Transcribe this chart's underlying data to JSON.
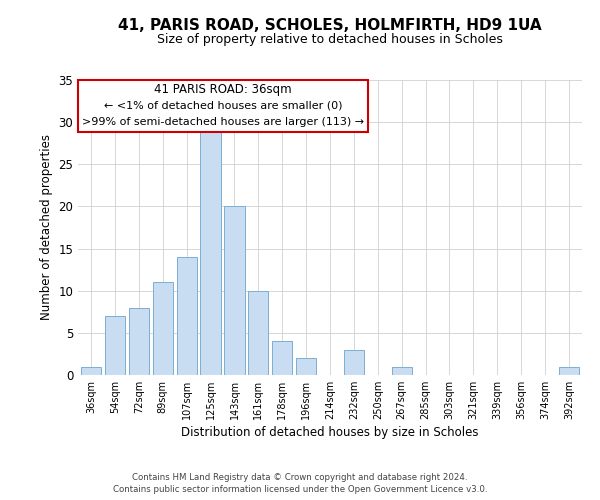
{
  "title": "41, PARIS ROAD, SCHOLES, HOLMFIRTH, HD9 1UA",
  "subtitle": "Size of property relative to detached houses in Scholes",
  "xlabel": "Distribution of detached houses by size in Scholes",
  "ylabel": "Number of detached properties",
  "bar_color": "#c8ddf2",
  "bar_edge_color": "#7bafd4",
  "categories": [
    "36sqm",
    "54sqm",
    "72sqm",
    "89sqm",
    "107sqm",
    "125sqm",
    "143sqm",
    "161sqm",
    "178sqm",
    "196sqm",
    "214sqm",
    "232sqm",
    "250sqm",
    "267sqm",
    "285sqm",
    "303sqm",
    "321sqm",
    "339sqm",
    "356sqm",
    "374sqm",
    "392sqm"
  ],
  "values": [
    1,
    7,
    8,
    11,
    14,
    29,
    20,
    10,
    4,
    2,
    0,
    3,
    0,
    1,
    0,
    0,
    0,
    0,
    0,
    0,
    1
  ],
  "ylim": [
    0,
    35
  ],
  "yticks": [
    0,
    5,
    10,
    15,
    20,
    25,
    30,
    35
  ],
  "annotation_lines": [
    "41 PARIS ROAD: 36sqm",
    "← <1% of detached houses are smaller (0)",
    ">99% of semi-detached houses are larger (113) →"
  ],
  "footer_lines": [
    "Contains HM Land Registry data © Crown copyright and database right 2024.",
    "Contains public sector information licensed under the Open Government Licence v3.0."
  ],
  "background_color": "#ffffff",
  "grid_color": "#d0d0d0"
}
